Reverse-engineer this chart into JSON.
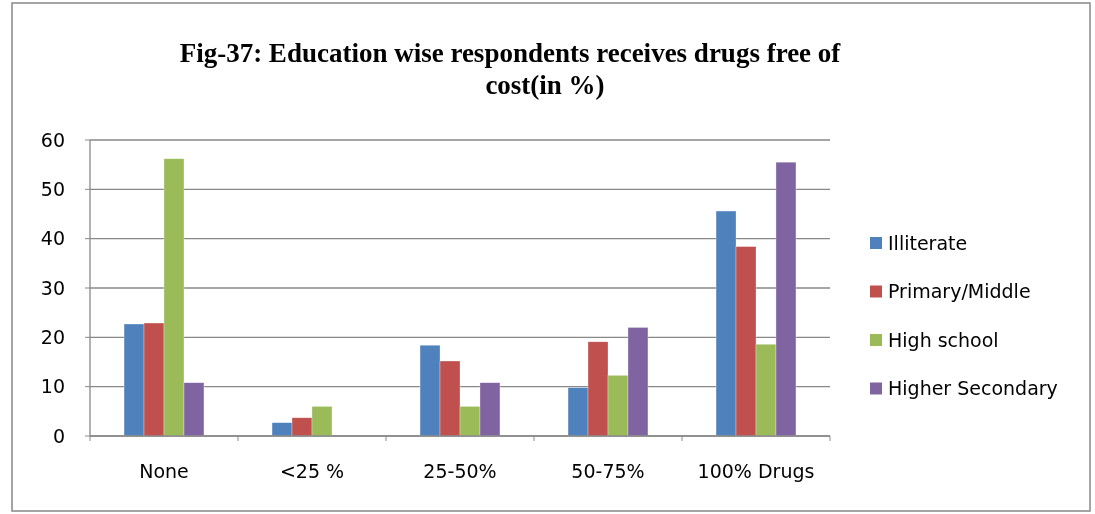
{
  "chart_data": {
    "type": "bar",
    "title": "Fig-37: Education wise respondents receives drugs free of cost(in %)",
    "categories": [
      "None",
      "<25 %",
      "25-50%",
      "50-75%",
      "100% Drugs"
    ],
    "series": [
      {
        "name": "Illiterate",
        "color": "#4f81bd",
        "values": [
          22.7,
          2.7,
          18.4,
          9.8,
          45.6
        ]
      },
      {
        "name": "Primary/Middle",
        "color": "#c0504d",
        "values": [
          22.9,
          3.7,
          15.2,
          19.1,
          38.4
        ]
      },
      {
        "name": "High school",
        "color": "#9bbb59",
        "values": [
          56.2,
          6.0,
          6.0,
          12.3,
          18.6
        ]
      },
      {
        "name": "Higher Secondary",
        "color": "#8064a2",
        "values": [
          10.8,
          0,
          10.8,
          22.0,
          55.5
        ]
      }
    ],
    "ylim": [
      0,
      60
    ],
    "yticks": [
      0,
      10,
      20,
      30,
      40,
      50,
      60
    ],
    "grid": "y",
    "legend": "right"
  }
}
